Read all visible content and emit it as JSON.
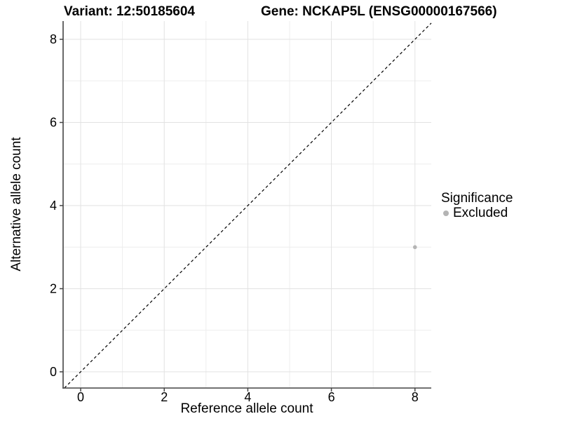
{
  "chart_data": {
    "type": "scatter",
    "title_variant": "Variant: 12:50185604",
    "title_gene": "Gene: NCKAP5L (ENSG00000167566)",
    "xlabel": "Reference allele count",
    "ylabel": "Alternative allele count",
    "x_ticks": [
      0,
      2,
      4,
      6,
      8
    ],
    "y_ticks": [
      0,
      2,
      4,
      6,
      8
    ],
    "x_minor_ticks": [
      1,
      3,
      5,
      7
    ],
    "y_minor_ticks": [
      1,
      3,
      5,
      7
    ],
    "xlim": [
      -0.42,
      8.39
    ],
    "ylim": [
      -0.39,
      8.44
    ],
    "identity_line": {
      "slope": 1,
      "intercept": 0,
      "style": "dashed"
    },
    "series": [
      {
        "name": "Excluded",
        "points": [
          {
            "x": 8,
            "y": 3
          }
        ]
      }
    ],
    "legend": {
      "position": "right",
      "title": "Significance",
      "items": [
        {
          "label": "Excluded",
          "color": "#b4b4b4"
        }
      ]
    },
    "grid": "major-and-minor",
    "colors": {
      "background": "#ffffff",
      "grid_major": "#e2e2e2",
      "grid_minor": "#ededed",
      "axis": "#444444",
      "text": "#000000",
      "identity_line": "#000000",
      "point": "#b4b4b4"
    }
  }
}
